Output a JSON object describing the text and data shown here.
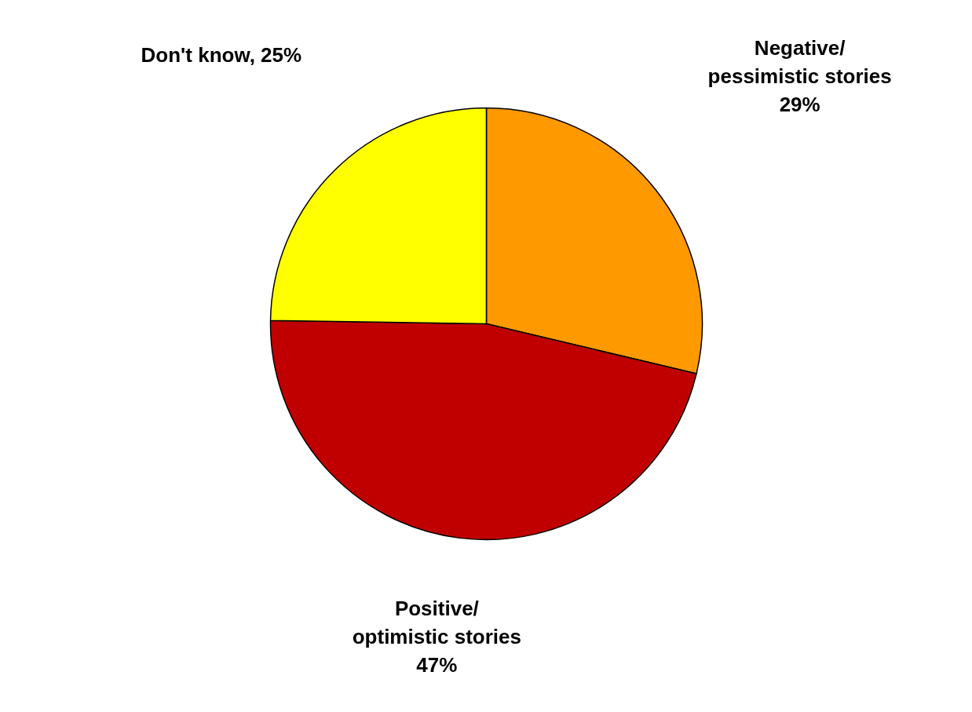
{
  "chart_data": {
    "type": "pie",
    "categories": [
      "Negative/\npessimistic stories",
      "Positive/\noptimistic stories",
      "Don't know"
    ],
    "values": [
      29,
      47,
      25
    ],
    "colors": [
      "#ff9900",
      "#c00000",
      "#ffff00"
    ],
    "value_labels": [
      "29%",
      "47%",
      "25%"
    ]
  }
}
